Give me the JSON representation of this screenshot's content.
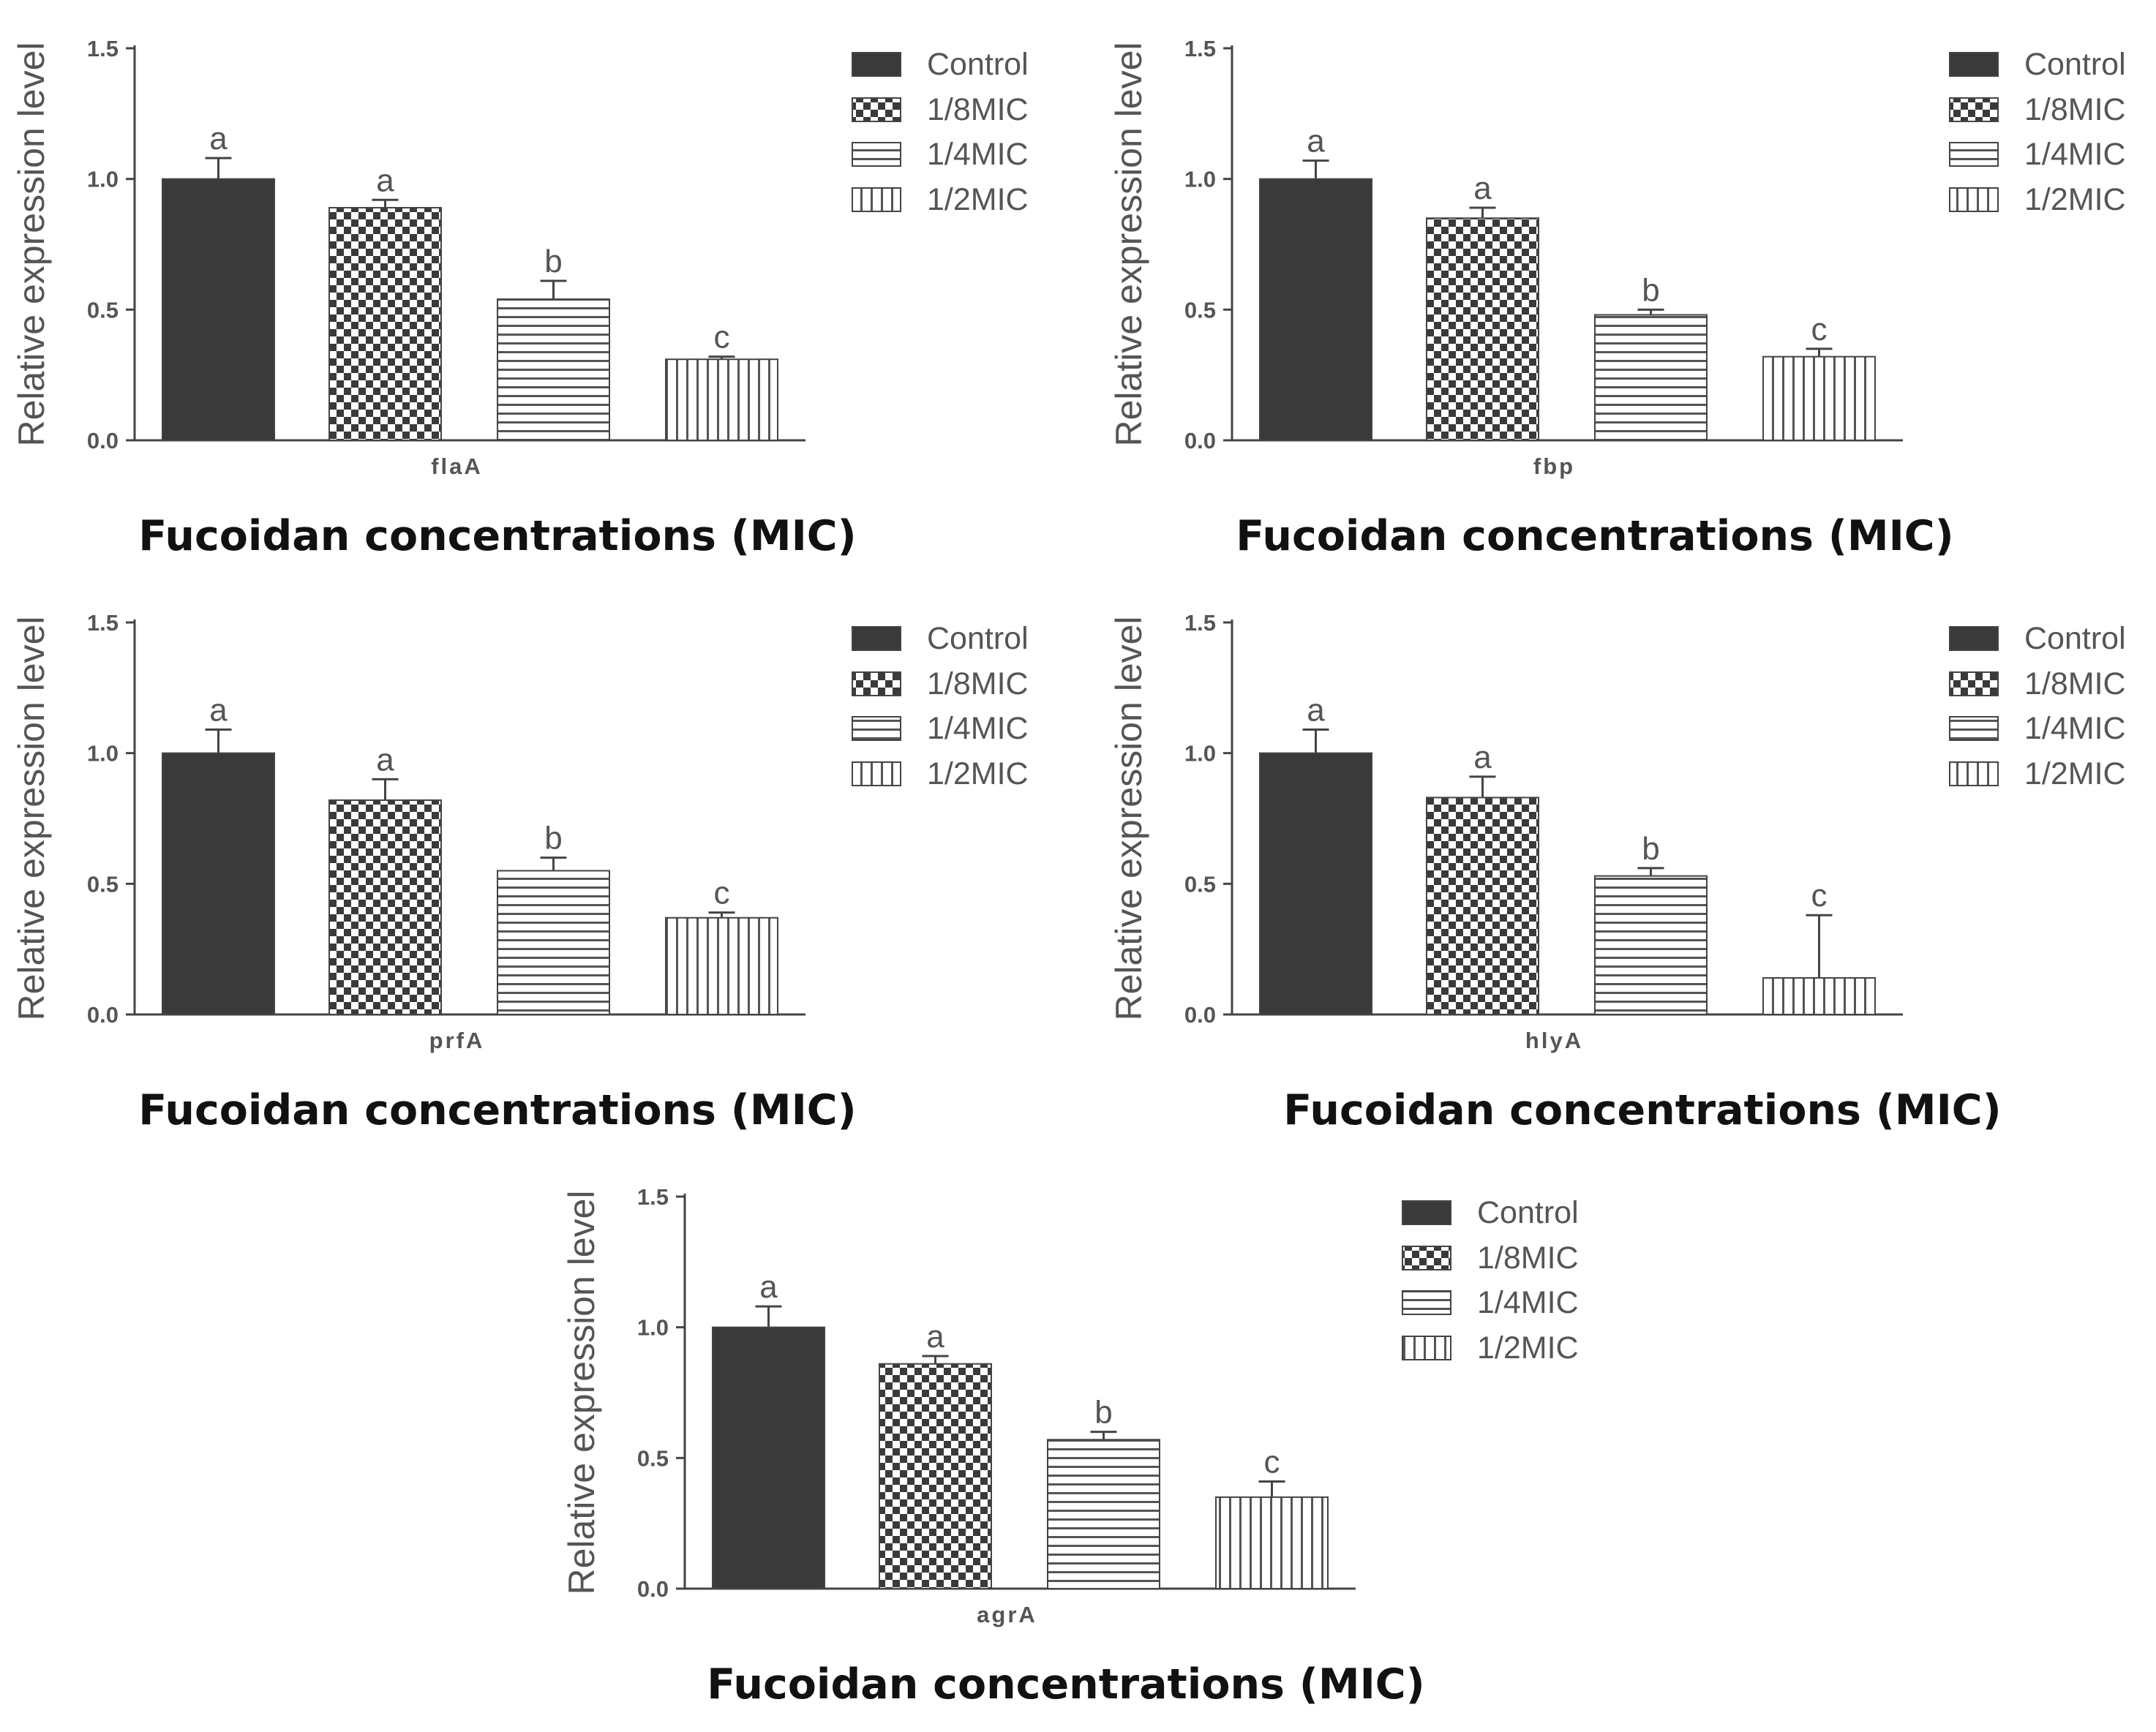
{
  "figure_xlabel": "Fucoidan concentrations (MIC)",
  "legend_entries": [
    "Control",
    "1/8MIC",
    "1/4MIC",
    "1/2MIC"
  ],
  "colors": {
    "control": "#3a3a3a",
    "axis": "#444444",
    "text": "#555555"
  },
  "chart_data": [
    {
      "type": "bar",
      "gene": "flaA",
      "ylabel": "Relative expression level",
      "xlabel": "Fucoidan concentrations (MIC)",
      "ylim": [
        0,
        1.5
      ],
      "yticks": [
        "0.0",
        "0.5",
        "1.0",
        "1.5"
      ],
      "categories": [
        "Control",
        "1/8MIC",
        "1/4MIC",
        "1/2MIC"
      ],
      "values": [
        1.0,
        0.89,
        0.54,
        0.31
      ],
      "errors": [
        0.08,
        0.03,
        0.07,
        0.01
      ],
      "significance": [
        "a",
        "a",
        "b",
        "c"
      ]
    },
    {
      "type": "bar",
      "gene": "fbp",
      "ylabel": "Relative expression level",
      "xlabel": "Fucoidan concentrations (MIC)",
      "ylim": [
        0,
        1.5
      ],
      "yticks": [
        "0.0",
        "0.5",
        "1.0",
        "1.5"
      ],
      "categories": [
        "Control",
        "1/8MIC",
        "1/4MIC",
        "1/2MIC"
      ],
      "values": [
        1.0,
        0.85,
        0.48,
        0.32
      ],
      "errors": [
        0.07,
        0.04,
        0.02,
        0.03
      ],
      "significance": [
        "a",
        "a",
        "b",
        "c"
      ]
    },
    {
      "type": "bar",
      "gene": "prfA",
      "ylabel": "Relative expression level",
      "xlabel": "Fucoidan concentrations (MIC)",
      "ylim": [
        0,
        1.5
      ],
      "yticks": [
        "0.0",
        "0.5",
        "1.0",
        "1.5"
      ],
      "categories": [
        "Control",
        "1/8MIC",
        "1/4MIC",
        "1/2MIC"
      ],
      "values": [
        1.0,
        0.82,
        0.55,
        0.37
      ],
      "errors": [
        0.09,
        0.08,
        0.05,
        0.02
      ],
      "significance": [
        "a",
        "a",
        "b",
        "c"
      ]
    },
    {
      "type": "bar",
      "gene": "hlyA",
      "ylabel": "Relative expression level",
      "xlabel": "Fucoidan concentrations (MIC)",
      "ylim": [
        0,
        1.5
      ],
      "yticks": [
        "0.0",
        "0.5",
        "1.0",
        "1.5"
      ],
      "categories": [
        "Control",
        "1/8MIC",
        "1/4MIC",
        "1/2MIC"
      ],
      "values": [
        1.0,
        0.83,
        0.53,
        0.14
      ],
      "errors": [
        0.09,
        0.08,
        0.03,
        0.24
      ],
      "significance": [
        "a",
        "a",
        "b",
        "c"
      ]
    },
    {
      "type": "bar",
      "gene": "agrA",
      "ylabel": "Relative expression level",
      "xlabel": "Fucoidan concentrations (MIC)",
      "ylim": [
        0,
        1.5
      ],
      "yticks": [
        "0.0",
        "0.5",
        "1.0",
        "1.5"
      ],
      "categories": [
        "Control",
        "1/8MIC",
        "1/4MIC",
        "1/2MIC"
      ],
      "values": [
        1.0,
        0.86,
        0.57,
        0.35
      ],
      "errors": [
        0.08,
        0.03,
        0.03,
        0.06
      ],
      "significance": [
        "a",
        "a",
        "b",
        "c"
      ]
    }
  ]
}
